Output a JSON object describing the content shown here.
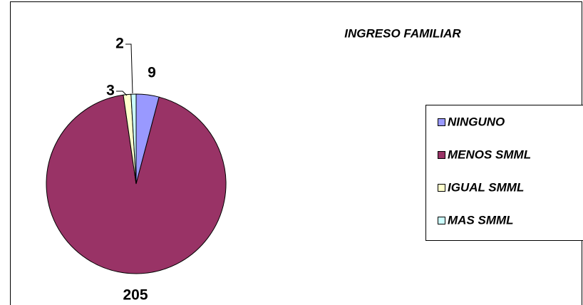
{
  "chart_data": {
    "type": "pie",
    "title": "INGRESO FAMILIAR",
    "categories": [
      "NINGUNO",
      "MENOS SMML",
      "IGUAL SMML",
      "MAS SMML"
    ],
    "values": [
      9,
      205,
      3,
      2
    ],
    "colors": [
      "#9999ff",
      "#993366",
      "#ffffcc",
      "#ccffff"
    ],
    "legend": "right"
  }
}
